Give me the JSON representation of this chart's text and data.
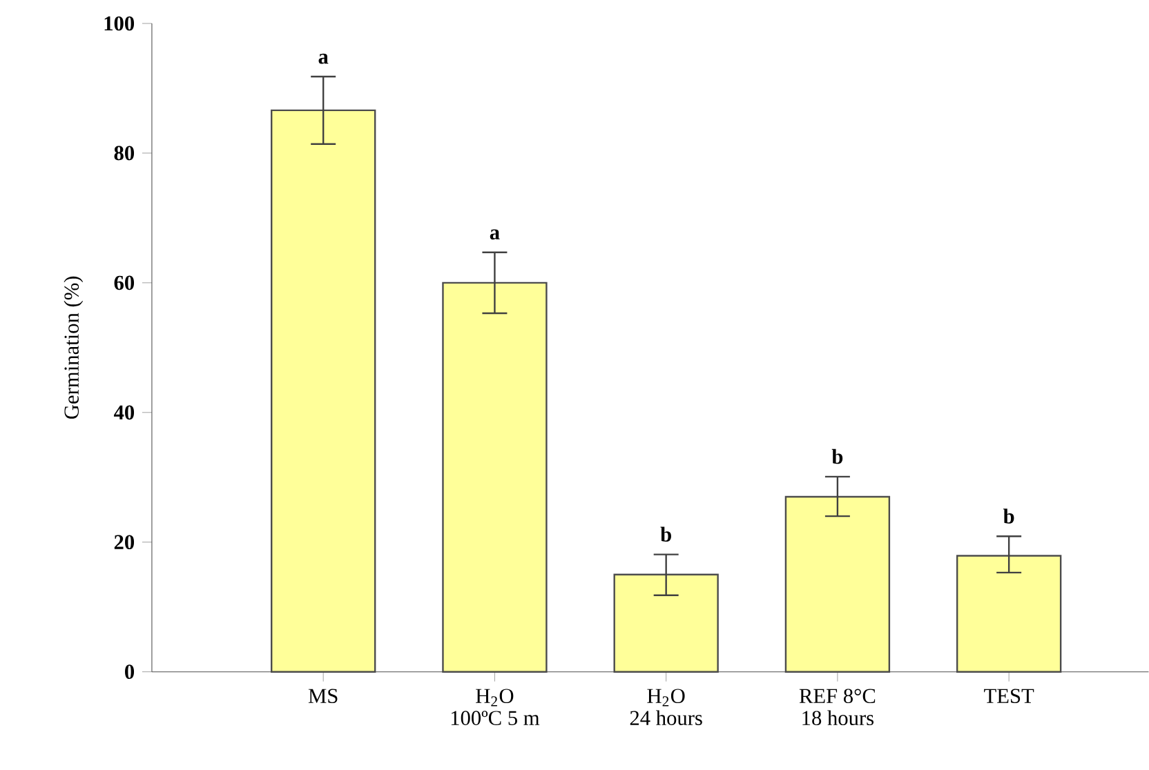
{
  "chart_data": {
    "type": "bar",
    "ylabel": "Germination (%)",
    "categories": [
      "MS",
      "H$_{2}$O\n100ºC 5 m",
      "H$_{2}$O\n24 hours",
      "REF 8°C\n18 hours",
      "TEST"
    ],
    "values": [
      86.6,
      60.0,
      15.0,
      27.0,
      17.9
    ],
    "errors": [
      [
        81.4,
        91.8
      ],
      [
        55.3,
        64.7
      ],
      [
        11.8,
        18.1
      ],
      [
        24.0,
        30.1
      ],
      [
        15.3,
        20.9
      ]
    ],
    "color": "#ffff99",
    "ylim": [
      0,
      100
    ],
    "yticks": [
      0,
      20,
      40,
      60,
      80,
      100
    ],
    "grid": false,
    "annotations": [
      "a",
      "a",
      "b",
      "b",
      "b"
    ]
  }
}
